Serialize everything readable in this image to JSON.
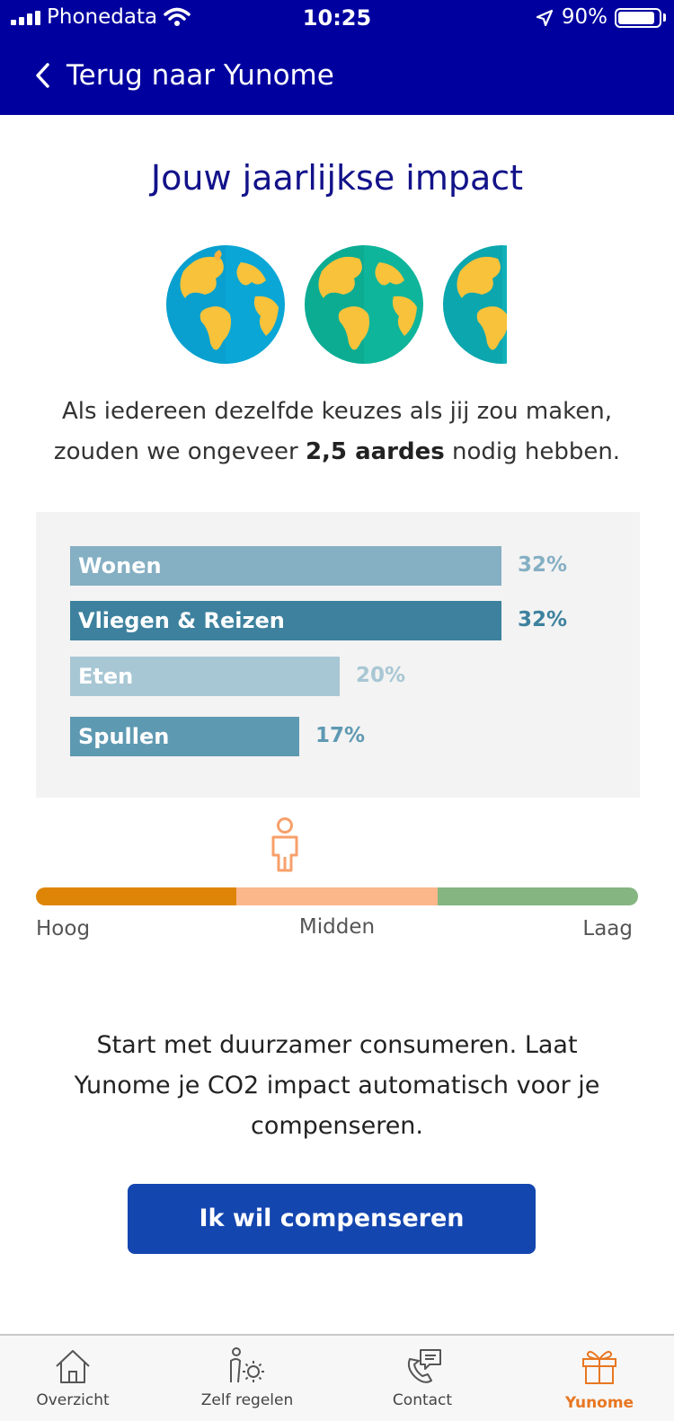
{
  "status_bar": {
    "carrier": "Phonedata",
    "time": "10:25",
    "battery": "90%",
    "battery_level": 0.9
  },
  "nav": {
    "back_label": "Terug naar Yunome"
  },
  "page": {
    "title": "Jouw jaarlijkse impact",
    "intro_prefix": "Als iedereen dezelfde keuzes als jij zou maken, zouden we ongeveer ",
    "intro_bold": "2,5 aardes",
    "intro_suffix": " nodig hebben."
  },
  "chart_data": {
    "type": "bar",
    "orientation": "horizontal",
    "categories": [
      "Wonen",
      "Vliegen & Reizen",
      "Eten",
      "Spullen"
    ],
    "values": [
      32,
      32,
      20,
      17
    ],
    "value_labels": [
      "32%",
      "32%",
      "20%",
      "17%"
    ],
    "bar_colors": [
      "#85afc3",
      "#3d819e",
      "#a8c7d4",
      "#5e99b2"
    ],
    "label_colors": [
      "#85afc3",
      "#3d819e",
      "#a8c7d4",
      "#5e99b2"
    ],
    "xlim": [
      0,
      32
    ],
    "grid": false,
    "legend": "none"
  },
  "scale": {
    "labels": [
      "Hoog",
      "Midden",
      "Laag"
    ],
    "colors": [
      "#de8508",
      "#fbb68a",
      "#85b580"
    ],
    "marker_position": "Midden",
    "marker_icon": "person-icon"
  },
  "cta": {
    "text": "Start met duurzamer consumeren. Laat Yunome je CO2 impact automatisch voor je compenseren.",
    "button_label": "Ik wil compenseren"
  },
  "tabbar": {
    "tabs": [
      {
        "label": "Overzicht",
        "icon": "house-icon",
        "active": false
      },
      {
        "label": "Zelf regelen",
        "icon": "person-gear-icon",
        "active": false
      },
      {
        "label": "Contact",
        "icon": "phone-chat-icon",
        "active": false
      },
      {
        "label": "Yunome",
        "icon": "gift-icon",
        "active": true
      }
    ]
  },
  "colors": {
    "brand_blue": "#00009f",
    "title_blue": "#12128a",
    "button_blue": "#1446b0",
    "active_orange": "#e87722"
  }
}
